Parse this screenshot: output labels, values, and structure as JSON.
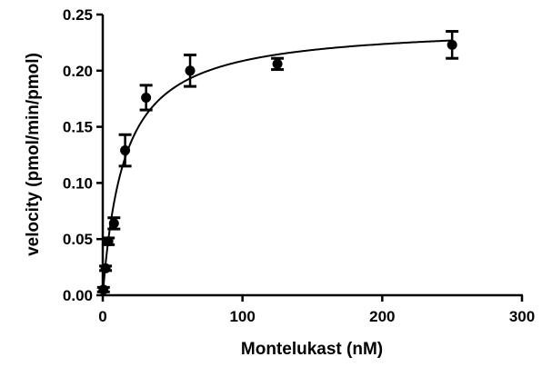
{
  "chart_data": {
    "type": "scatter",
    "title": "",
    "xlabel": "Montelukast (nM)",
    "ylabel": "velocity (pmol/min/pmol)",
    "xlim": [
      0,
      300
    ],
    "ylim": [
      0,
      0.25
    ],
    "x_ticks": [
      "0",
      "100",
      "200",
      "300"
    ],
    "y_ticks": [
      "0.00",
      "0.05",
      "0.10",
      "0.15",
      "0.20",
      "0.25"
    ],
    "grid": false,
    "legend": "none",
    "series": [
      {
        "marker": "filled-circle",
        "color": "#000000",
        "points": [
          {
            "x": 0.5,
            "y": 0.005,
            "err": 0.002
          },
          {
            "x": 2,
            "y": 0.024,
            "err": 0.002
          },
          {
            "x": 4,
            "y": 0.048,
            "err": 0.003
          },
          {
            "x": 8,
            "y": 0.064,
            "err": 0.005
          },
          {
            "x": 16,
            "y": 0.129,
            "err": 0.014
          },
          {
            "x": 31,
            "y": 0.176,
            "err": 0.011
          },
          {
            "x": 62.5,
            "y": 0.2,
            "err": 0.014
          },
          {
            "x": 125,
            "y": 0.206,
            "err": 0.005
          },
          {
            "x": 250,
            "y": 0.223,
            "err": 0.012
          }
        ]
      }
    ],
    "fit_curve": {
      "model": "Michaelis-Menten",
      "vmax": 0.241,
      "km": 15.5
    }
  }
}
